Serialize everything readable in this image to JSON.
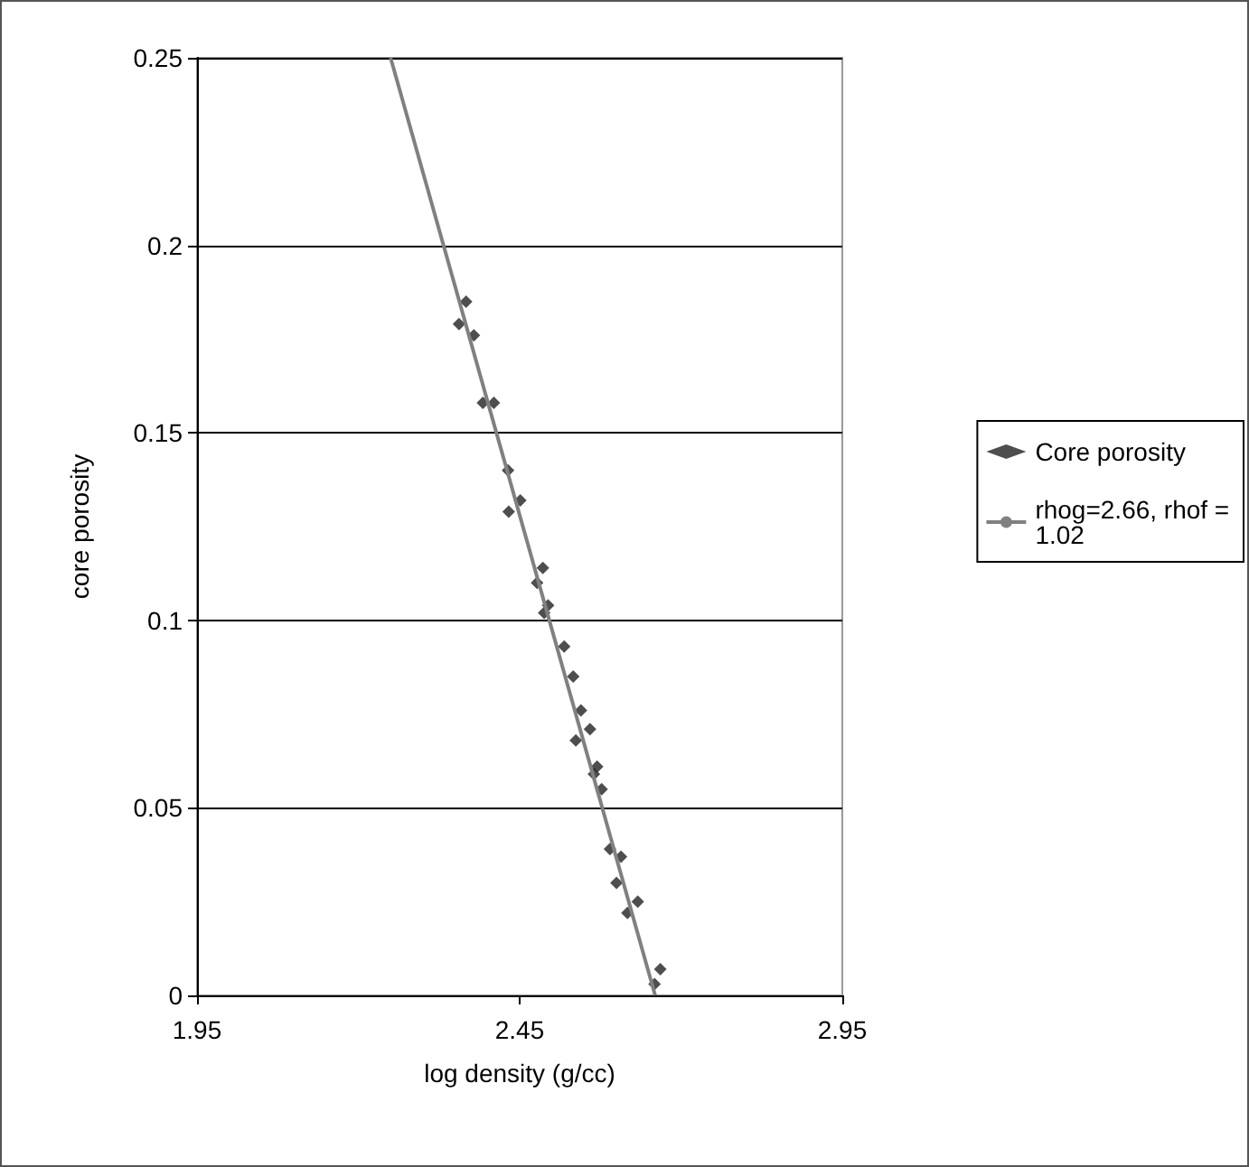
{
  "chart_data": {
    "type": "scatter",
    "xlabel": "log density (g/cc)",
    "ylabel": "core porosity",
    "xlim": [
      1.95,
      2.95
    ],
    "xticks": [
      1.95,
      2.45,
      2.95
    ],
    "ylim": [
      0,
      0.25
    ],
    "yticks": [
      0,
      0.05,
      0.1,
      0.15,
      0.2,
      0.25
    ],
    "grid": "y",
    "legend": "right",
    "series": [
      {
        "name": "Core porosity",
        "marker": "diamond",
        "color": "#222222",
        "x": [
          2.367,
          2.356,
          2.379,
          2.393,
          2.41,
          2.432,
          2.451,
          2.433,
          2.486,
          2.477,
          2.494,
          2.488,
          2.519,
          2.533,
          2.545,
          2.559,
          2.537,
          2.57,
          2.565,
          2.577,
          2.59,
          2.607,
          2.6,
          2.633,
          2.617,
          2.668,
          2.659
        ],
        "values": [
          0.185,
          0.179,
          0.176,
          0.158,
          0.158,
          0.14,
          0.132,
          0.129,
          0.114,
          0.11,
          0.104,
          0.102,
          0.093,
          0.085,
          0.076,
          0.071,
          0.068,
          0.061,
          0.059,
          0.055,
          0.039,
          0.037,
          0.03,
          0.025,
          0.022,
          0.007,
          0.003
        ]
      },
      {
        "name": "rhog=2.66, rhof = 1.02",
        "type": "line",
        "marker": "none",
        "color": "#808080",
        "x": [
          2.25,
          2.66
        ],
        "values": [
          0.25,
          0
        ]
      }
    ]
  }
}
